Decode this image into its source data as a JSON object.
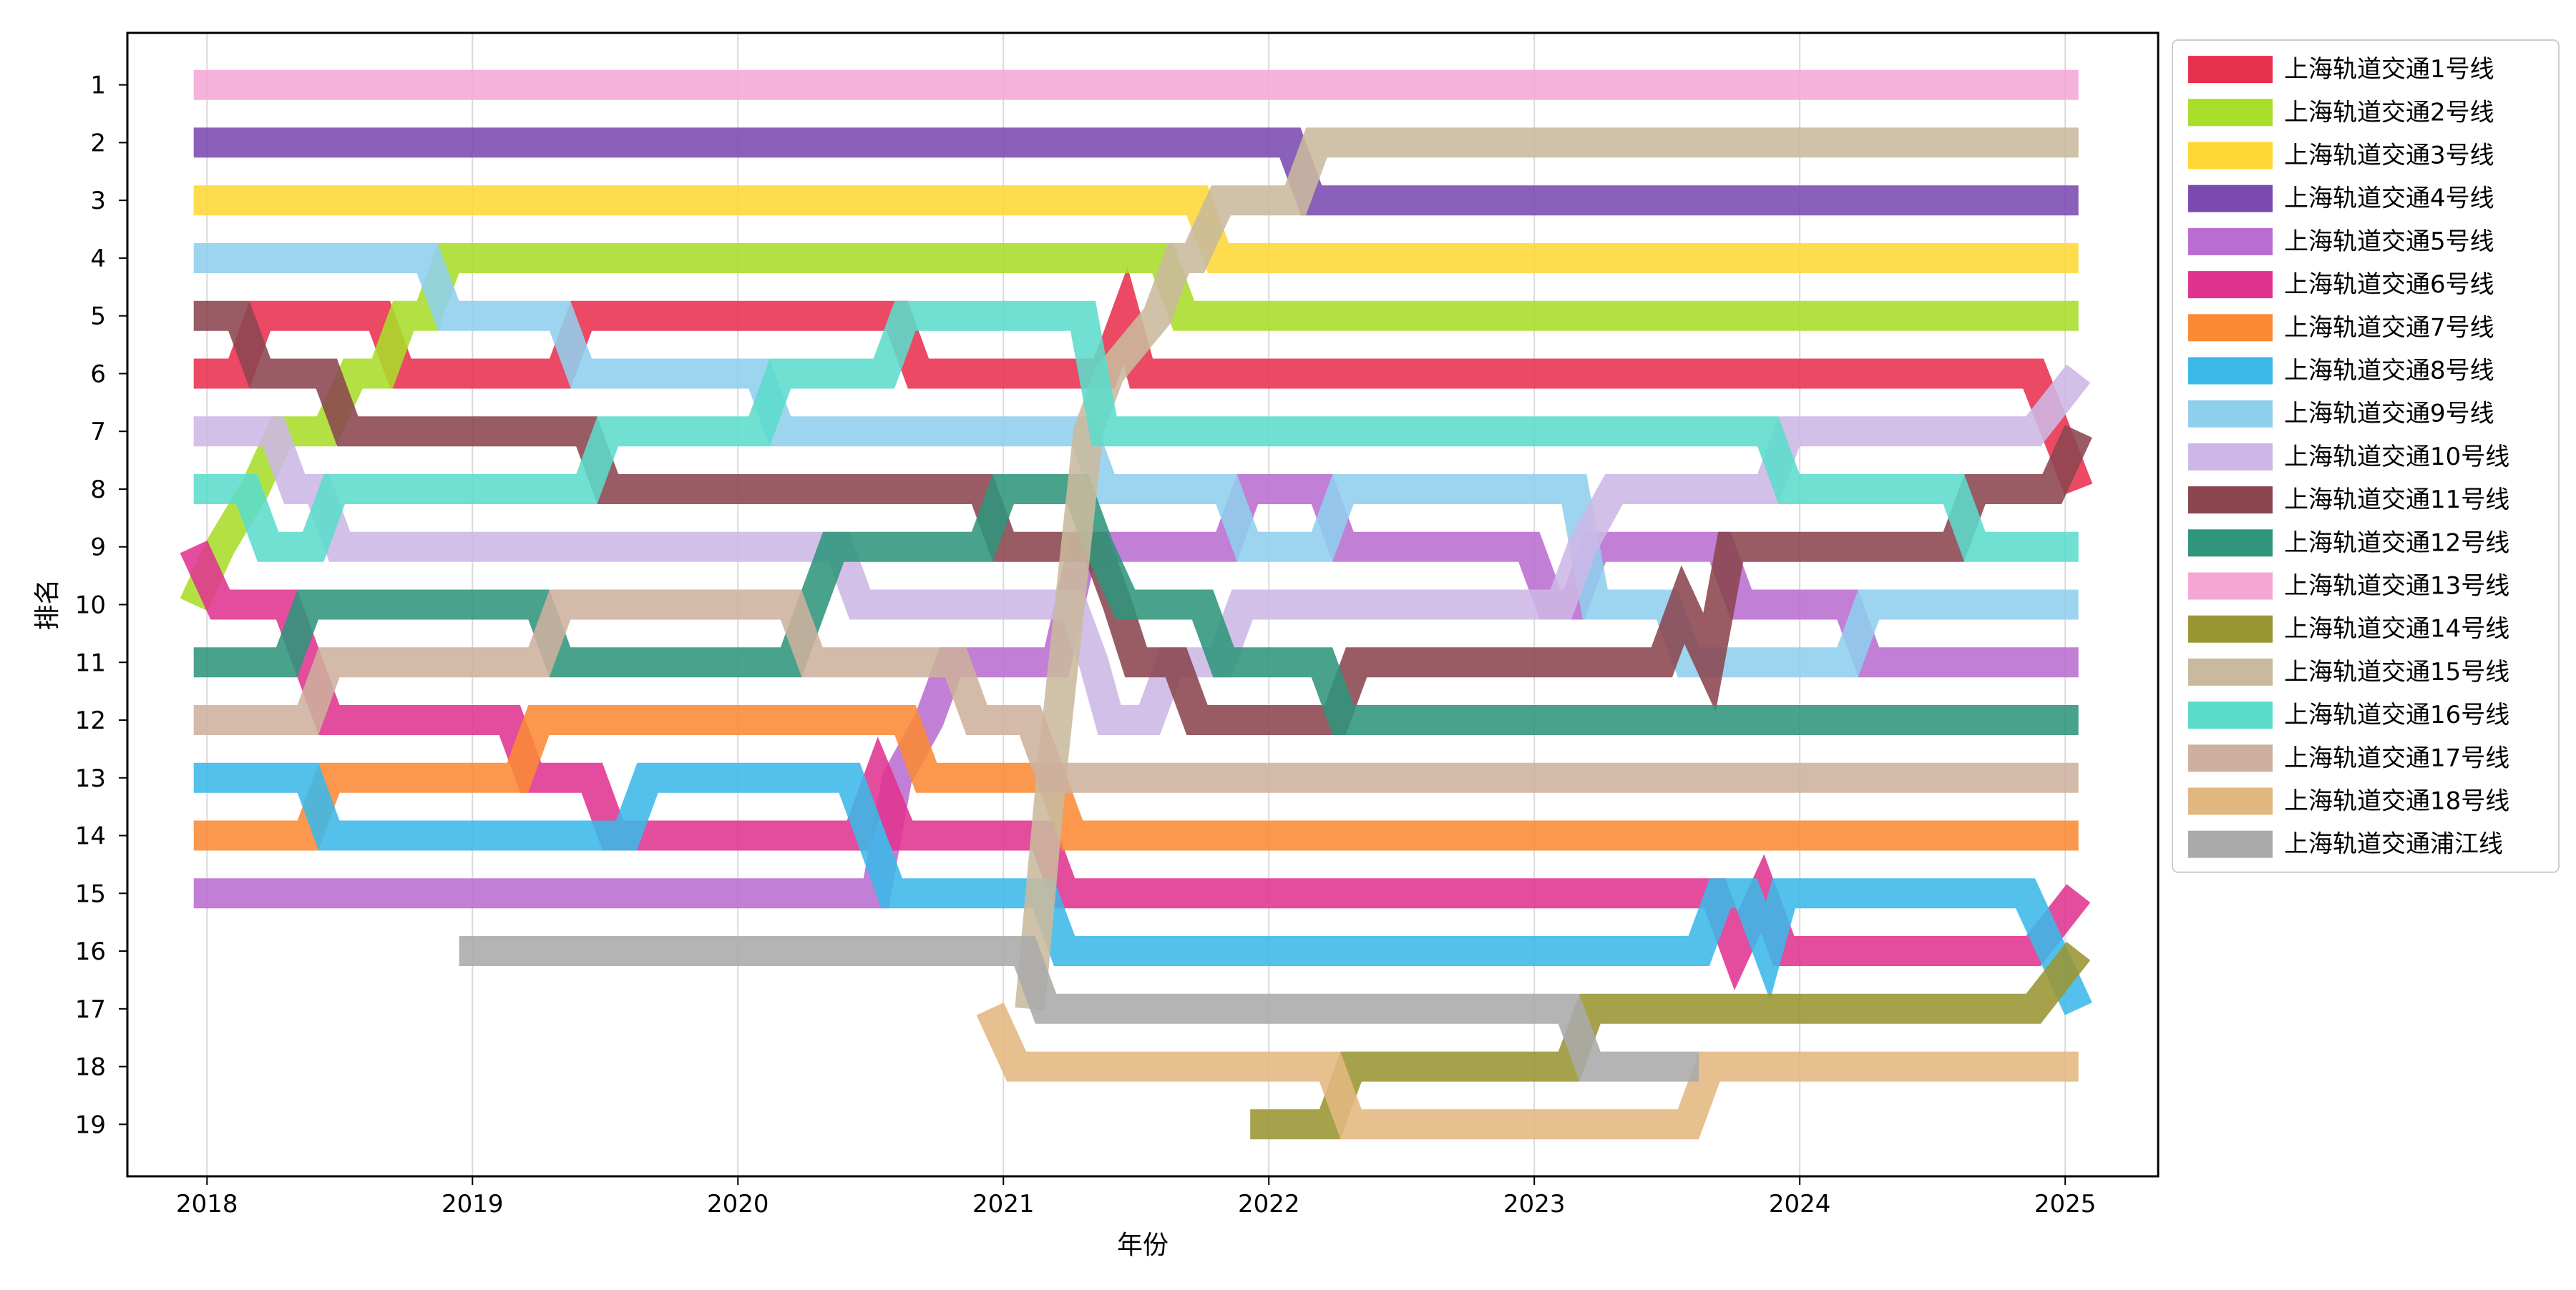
{
  "chart_data": {
    "type": "line",
    "subtype": "bump",
    "title": "",
    "xlabel": "年份",
    "ylabel": "排名",
    "xlim": [
      2017.7,
      2025.35
    ],
    "ylim": [
      19.9,
      0.1
    ],
    "x_ticks": [
      "2018",
      "2019",
      "2020",
      "2021",
      "2022",
      "2023",
      "2024",
      "2025"
    ],
    "y_ticks": [
      "1",
      "2",
      "3",
      "4",
      "5",
      "6",
      "7",
      "8",
      "9",
      "10",
      "11",
      "12",
      "13",
      "14",
      "15",
      "16",
      "17",
      "18",
      "19"
    ],
    "grid": "vertical",
    "legend_position": "outside-right",
    "series": [
      {
        "name": "上海轨道交通1号线",
        "color": "#e8304f",
        "points": [
          [
            2017.95,
            6
          ],
          [
            2018.12,
            6
          ],
          [
            2018.2,
            5
          ],
          [
            2018.65,
            5
          ],
          [
            2018.73,
            6
          ],
          [
            2019.33,
            6
          ],
          [
            2019.41,
            5
          ],
          [
            2020.6,
            5
          ],
          [
            2020.68,
            6
          ],
          [
            2021.38,
            6
          ],
          [
            2021.46,
            5
          ],
          [
            2021.52,
            6
          ],
          [
            2024.88,
            6
          ],
          [
            2025.05,
            8
          ]
        ]
      },
      {
        "name": "上海轨道交通2号线",
        "color": "#a8dd2a",
        "points": [
          [
            2017.95,
            10
          ],
          [
            2018.05,
            9
          ],
          [
            2018.18,
            8
          ],
          [
            2018.28,
            7
          ],
          [
            2018.45,
            7
          ],
          [
            2018.55,
            6
          ],
          [
            2018.66,
            6
          ],
          [
            2018.74,
            5
          ],
          [
            2018.83,
            5
          ],
          [
            2018.91,
            4
          ],
          [
            2021.6,
            4
          ],
          [
            2021.68,
            5
          ],
          [
            2025.05,
            5
          ]
        ]
      },
      {
        "name": "上海轨道交通3号线",
        "color": "#fdd835",
        "points": [
          [
            2017.95,
            3
          ],
          [
            2021.73,
            3
          ],
          [
            2021.81,
            4
          ],
          [
            2025.05,
            4
          ]
        ]
      },
      {
        "name": "上海轨道交通4号线",
        "color": "#7b4ab0",
        "points": [
          [
            2017.95,
            2
          ],
          [
            2022.08,
            2
          ],
          [
            2022.16,
            3
          ],
          [
            2025.05,
            3
          ]
        ]
      },
      {
        "name": "上海轨道交通5号线",
        "color": "#b96dd0",
        "points": [
          [
            2017.95,
            15
          ],
          [
            2020.52,
            15
          ],
          [
            2020.6,
            13
          ],
          [
            2020.72,
            12
          ],
          [
            2020.8,
            11
          ],
          [
            2021.2,
            11
          ],
          [
            2021.3,
            9
          ],
          [
            2021.5,
            9
          ],
          [
            2021.58,
            9
          ],
          [
            2021.84,
            9
          ],
          [
            2021.92,
            8
          ],
          [
            2022.2,
            8
          ],
          [
            2022.28,
            9
          ],
          [
            2022.98,
            9
          ],
          [
            2023.06,
            10
          ],
          [
            2023.15,
            10
          ],
          [
            2023.23,
            9
          ],
          [
            2023.7,
            9
          ],
          [
            2023.78,
            10
          ],
          [
            2024.18,
            10
          ],
          [
            2024.26,
            11
          ],
          [
            2025.05,
            11
          ]
        ]
      },
      {
        "name": "上海轨道交通6号线",
        "color": "#e0338f",
        "points": [
          [
            2017.95,
            9
          ],
          [
            2018.05,
            10
          ],
          [
            2018.3,
            10
          ],
          [
            2018.38,
            11
          ],
          [
            2018.46,
            12
          ],
          [
            2019.14,
            12
          ],
          [
            2019.22,
            13
          ],
          [
            2019.45,
            13
          ],
          [
            2019.53,
            14
          ],
          [
            2020.45,
            14
          ],
          [
            2020.53,
            13
          ],
          [
            2020.62,
            14
          ],
          [
            2021.15,
            14
          ],
          [
            2021.23,
            15
          ],
          [
            2023.68,
            15
          ],
          [
            2023.76,
            16
          ],
          [
            2023.86,
            15
          ],
          [
            2023.94,
            16
          ],
          [
            2024.88,
            16
          ],
          [
            2025.05,
            15
          ]
        ]
      },
      {
        "name": "上海轨道交通7号线",
        "color": "#fb8a35",
        "points": [
          [
            2017.95,
            14
          ],
          [
            2018.38,
            14
          ],
          [
            2018.46,
            13
          ],
          [
            2019.17,
            13
          ],
          [
            2019.25,
            12
          ],
          [
            2020.63,
            12
          ],
          [
            2020.71,
            13
          ],
          [
            2021.18,
            13
          ],
          [
            2021.26,
            14
          ],
          [
            2025.05,
            14
          ]
        ]
      },
      {
        "name": "上海轨道交通8号线",
        "color": "#3bb8e8",
        "points": [
          [
            2017.95,
            13
          ],
          [
            2018.38,
            13
          ],
          [
            2018.46,
            14
          ],
          [
            2019.58,
            14
          ],
          [
            2019.66,
            13
          ],
          [
            2020.42,
            13
          ],
          [
            2020.5,
            14
          ],
          [
            2020.58,
            15
          ],
          [
            2021.15,
            15
          ],
          [
            2021.23,
            16
          ],
          [
            2023.62,
            16
          ],
          [
            2023.7,
            15
          ],
          [
            2023.8,
            15
          ],
          [
            2023.88,
            16
          ],
          [
            2023.94,
            15
          ],
          [
            2024.85,
            15
          ],
          [
            2025.05,
            17
          ]
        ]
      },
      {
        "name": "上海轨道交通9号线",
        "color": "#8fcfee",
        "points": [
          [
            2017.95,
            4
          ],
          [
            2018.83,
            4
          ],
          [
            2018.91,
            5
          ],
          [
            2019.33,
            5
          ],
          [
            2019.41,
            6
          ],
          [
            2020.08,
            6
          ],
          [
            2020.16,
            7
          ],
          [
            2021.3,
            7
          ],
          [
            2021.38,
            8
          ],
          [
            2021.84,
            8
          ],
          [
            2021.92,
            9
          ],
          [
            2022.2,
            9
          ],
          [
            2022.28,
            8
          ],
          [
            2023.15,
            8
          ],
          [
            2023.23,
            10
          ],
          [
            2023.5,
            10
          ],
          [
            2023.58,
            11
          ],
          [
            2024.18,
            11
          ],
          [
            2024.26,
            10
          ],
          [
            2025.05,
            10
          ]
        ]
      },
      {
        "name": "上海轨道交通10号线",
        "color": "#cdb7e6",
        "points": [
          [
            2017.95,
            7
          ],
          [
            2018.25,
            7
          ],
          [
            2018.33,
            8
          ],
          [
            2018.42,
            8
          ],
          [
            2018.5,
            9
          ],
          [
            2020.38,
            9
          ],
          [
            2020.46,
            10
          ],
          [
            2021.26,
            10
          ],
          [
            2021.34,
            11
          ],
          [
            2021.4,
            12
          ],
          [
            2021.55,
            12
          ],
          [
            2021.63,
            11
          ],
          [
            2021.82,
            11
          ],
          [
            2021.9,
            10
          ],
          [
            2023.1,
            10
          ],
          [
            2023.18,
            9
          ],
          [
            2023.3,
            8
          ],
          [
            2023.88,
            8
          ],
          [
            2023.96,
            7
          ],
          [
            2024.88,
            7
          ],
          [
            2025.05,
            6
          ]
        ]
      },
      {
        "name": "上海轨道交通11号线",
        "color": "#8b4650",
        "points": [
          [
            2017.95,
            5
          ],
          [
            2018.12,
            5
          ],
          [
            2018.2,
            6
          ],
          [
            2018.45,
            6
          ],
          [
            2018.53,
            7
          ],
          [
            2019.43,
            7
          ],
          [
            2019.51,
            8
          ],
          [
            2020.92,
            8
          ],
          [
            2021.0,
            9
          ],
          [
            2021.35,
            9
          ],
          [
            2021.43,
            10
          ],
          [
            2021.5,
            11
          ],
          [
            2021.65,
            11
          ],
          [
            2021.73,
            12
          ],
          [
            2022.25,
            12
          ],
          [
            2022.33,
            11
          ],
          [
            2023.48,
            11
          ],
          [
            2023.56,
            10
          ],
          [
            2023.66,
            11
          ],
          [
            2023.74,
            9
          ],
          [
            2024.58,
            9
          ],
          [
            2024.66,
            8
          ],
          [
            2024.95,
            8
          ],
          [
            2025.05,
            7
          ]
        ]
      },
      {
        "name": "上海轨道交通12号线",
        "color": "#2f957c",
        "points": [
          [
            2017.95,
            11
          ],
          [
            2018.3,
            11
          ],
          [
            2018.38,
            10
          ],
          [
            2019.25,
            10
          ],
          [
            2019.33,
            11
          ],
          [
            2020.2,
            11
          ],
          [
            2020.28,
            10
          ],
          [
            2020.36,
            9
          ],
          [
            2020.92,
            9
          ],
          [
            2021.0,
            8
          ],
          [
            2021.28,
            8
          ],
          [
            2021.36,
            9
          ],
          [
            2021.46,
            10
          ],
          [
            2021.75,
            10
          ],
          [
            2021.83,
            11
          ],
          [
            2022.2,
            11
          ],
          [
            2022.28,
            12
          ],
          [
            2025.05,
            12
          ]
        ]
      },
      {
        "name": "上海轨道交通13号线",
        "color": "#f4a7d5",
        "points": [
          [
            2017.95,
            1
          ],
          [
            2025.05,
            1
          ]
        ]
      },
      {
        "name": "上海轨道交通14号线",
        "color": "#9a9533",
        "points": [
          [
            2021.93,
            19
          ],
          [
            2022.23,
            19
          ],
          [
            2022.31,
            18
          ],
          [
            2023.13,
            18
          ],
          [
            2023.21,
            17
          ],
          [
            2024.88,
            17
          ],
          [
            2025.05,
            16
          ]
        ]
      },
      {
        "name": "上海轨道交通15号线",
        "color": "#c9b99d",
        "points": [
          [
            2021.1,
            17
          ],
          [
            2021.18,
            13
          ],
          [
            2021.32,
            7
          ],
          [
            2021.4,
            6
          ],
          [
            2021.58,
            5
          ],
          [
            2021.66,
            4
          ],
          [
            2021.72,
            4
          ],
          [
            2021.82,
            3
          ],
          [
            2022.1,
            3
          ],
          [
            2022.18,
            2
          ],
          [
            2025.05,
            2
          ]
        ]
      },
      {
        "name": "上海轨道交通16号线",
        "color": "#5bdccb",
        "points": [
          [
            2017.95,
            8
          ],
          [
            2018.15,
            8
          ],
          [
            2018.23,
            9
          ],
          [
            2018.4,
            9
          ],
          [
            2018.48,
            8
          ],
          [
            2019.43,
            8
          ],
          [
            2019.51,
            7
          ],
          [
            2020.08,
            7
          ],
          [
            2020.16,
            6
          ],
          [
            2020.55,
            6
          ],
          [
            2020.63,
            5
          ],
          [
            2021.3,
            5
          ],
          [
            2021.38,
            7
          ],
          [
            2023.88,
            7
          ],
          [
            2023.96,
            8
          ],
          [
            2024.58,
            8
          ],
          [
            2024.66,
            9
          ],
          [
            2025.05,
            9
          ]
        ]
      },
      {
        "name": "上海轨道交通17号线",
        "color": "#cdb09d",
        "points": [
          [
            2017.95,
            12
          ],
          [
            2018.38,
            12
          ],
          [
            2018.46,
            11
          ],
          [
            2019.25,
            11
          ],
          [
            2019.33,
            10
          ],
          [
            2020.2,
            10
          ],
          [
            2020.28,
            11
          ],
          [
            2020.82,
            11
          ],
          [
            2020.9,
            12
          ],
          [
            2021.1,
            12
          ],
          [
            2021.18,
            13
          ],
          [
            2025.05,
            13
          ]
        ]
      },
      {
        "name": "上海轨道交通18号线",
        "color": "#e2b77f",
        "points": [
          [
            2020.95,
            17
          ],
          [
            2021.05,
            18
          ],
          [
            2022.23,
            18
          ],
          [
            2022.31,
            19
          ],
          [
            2023.58,
            19
          ],
          [
            2023.66,
            18
          ],
          [
            2025.05,
            18
          ]
        ]
      },
      {
        "name": "上海轨道交通浦江线",
        "color": "#aaaaaa",
        "points": [
          [
            2018.95,
            16
          ],
          [
            2021.08,
            16
          ],
          [
            2021.16,
            17
          ],
          [
            2023.13,
            17
          ],
          [
            2023.21,
            18
          ],
          [
            2023.62,
            18
          ]
        ]
      }
    ]
  }
}
